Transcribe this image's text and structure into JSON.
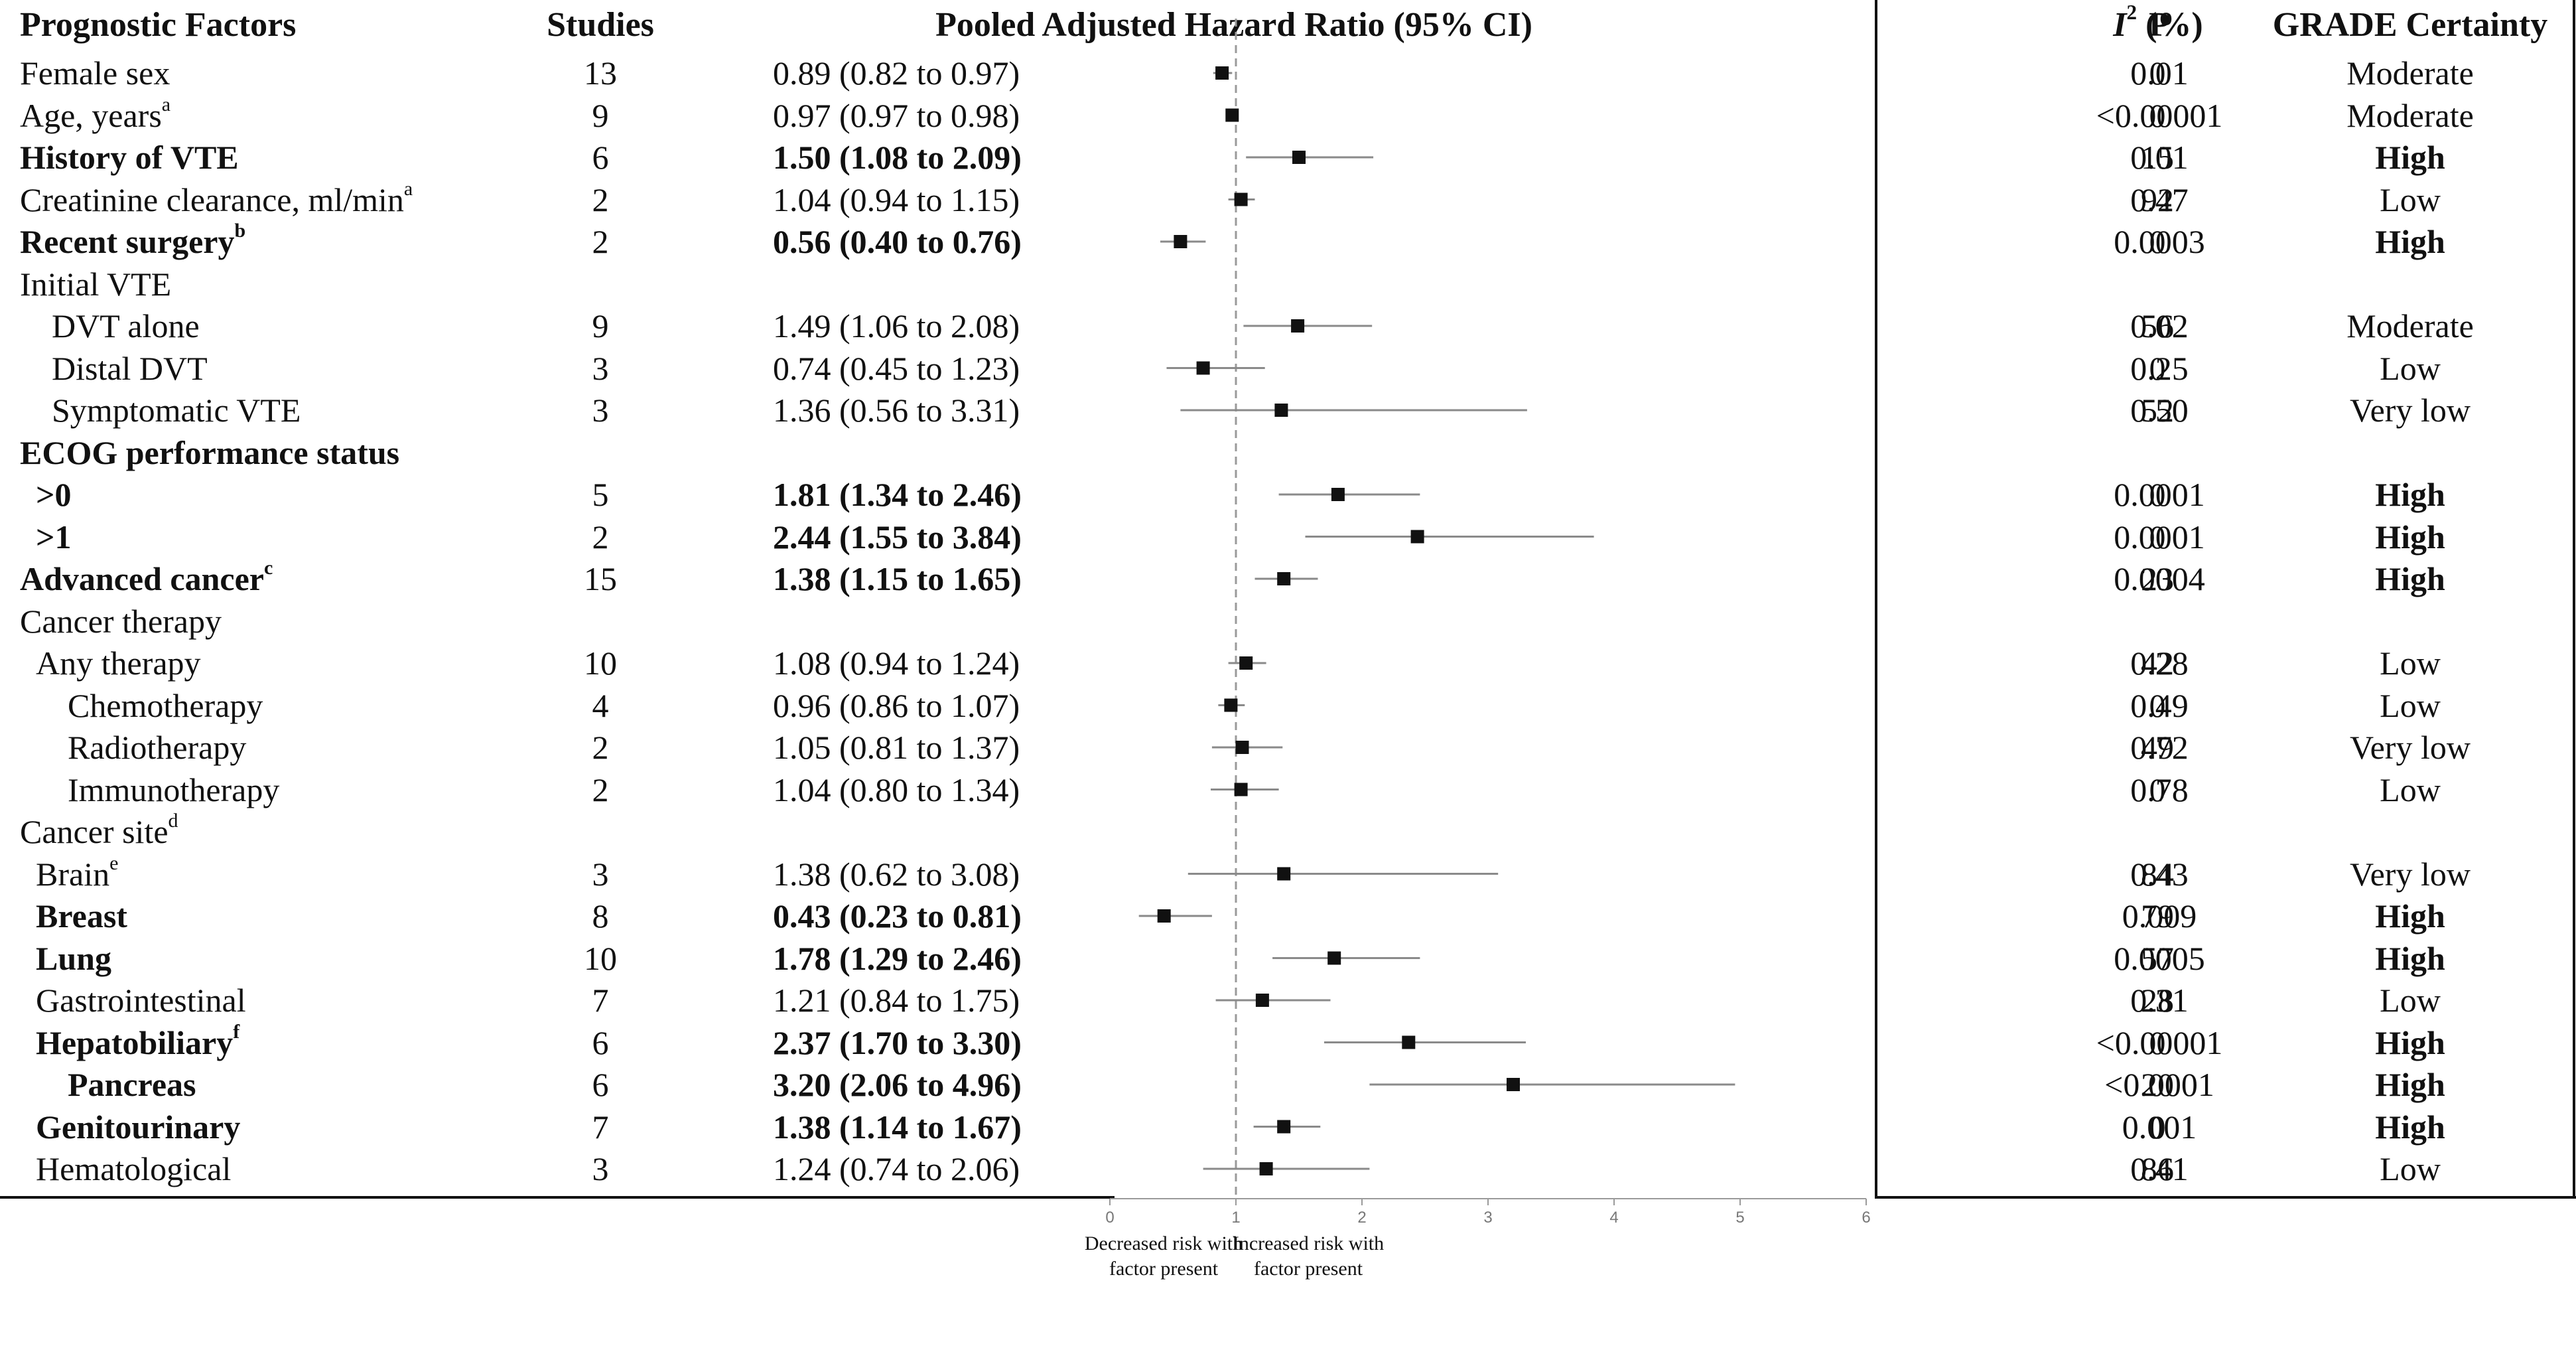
{
  "headers": {
    "factor": "Prognostic Factors",
    "studies": "Studies",
    "hr": "Pooled Adjusted Hazard Ratio (95% CI)",
    "p": "P",
    "i2": "I",
    "i2_sup": "2",
    "i2_unit": " (%)",
    "grade": "GRADE Certainty"
  },
  "rows": [
    {
      "label": "Female sex",
      "indent": 0,
      "bold": false,
      "studies": "13",
      "hr_text": "0.89 (0.82 to 0.97)",
      "hr": 0.89,
      "lo": 0.82,
      "hi": 0.97,
      "p": "0.01",
      "i2": "0",
      "grade": "Moderate",
      "grade_bold": false
    },
    {
      "label": "Age, years",
      "sup": "a",
      "indent": 0,
      "bold": false,
      "studies": "9",
      "hr_text": "0.97 (0.97 to 0.98)",
      "hr": 0.97,
      "lo": 0.97,
      "hi": 0.98,
      "p": "<0.00001",
      "i2": "0",
      "grade": "Moderate",
      "grade_bold": false
    },
    {
      "label": "History of VTE",
      "indent": 0,
      "bold": true,
      "studies": "6",
      "hr_text": "1.50 (1.08 to 2.09)",
      "hr": 1.5,
      "lo": 1.08,
      "hi": 2.09,
      "p": "0.01",
      "i2": "15",
      "grade": "High",
      "grade_bold": true
    },
    {
      "label": "Creatinine clearance, ml/min",
      "sup": "a",
      "indent": 0,
      "bold": false,
      "studies": "2",
      "hr_text": "1.04 (0.94 to 1.15)",
      "hr": 1.04,
      "lo": 0.94,
      "hi": 1.15,
      "p": "0.47",
      "i2": "92",
      "grade": "Low",
      "grade_bold": false
    },
    {
      "label": "Recent surgery",
      "sup": "b",
      "indent": 0,
      "bold": true,
      "studies": "2",
      "hr_text": "0.56 (0.40 to 0.76)",
      "hr": 0.56,
      "lo": 0.4,
      "hi": 0.76,
      "p": "0.0003",
      "i2": "0",
      "grade": "High",
      "grade_bold": true
    },
    {
      "label": "Initial VTE",
      "indent": 0,
      "bold": false
    },
    {
      "label": "DVT alone",
      "indent": 1,
      "bold": false,
      "studies": "9",
      "hr_text": "1.49 (1.06 to 2.08)",
      "hr": 1.49,
      "lo": 1.06,
      "hi": 2.08,
      "p": "0.02",
      "i2": "56",
      "grade": "Moderate",
      "grade_bold": false
    },
    {
      "label": "Distal DVT",
      "indent": 1,
      "bold": false,
      "studies": "3",
      "hr_text": "0.74 (0.45 to 1.23)",
      "hr": 0.74,
      "lo": 0.45,
      "hi": 1.23,
      "p": "0.25",
      "i2": "0",
      "grade": "Low",
      "grade_bold": false
    },
    {
      "label": "Symptomatic VTE",
      "indent": 1,
      "bold": false,
      "studies": "3",
      "hr_text": "1.36 (0.56 to 3.31)",
      "hr": 1.36,
      "lo": 0.56,
      "hi": 3.31,
      "p": "0.50",
      "i2": "52",
      "grade": "Very low",
      "grade_bold": false
    },
    {
      "label": "ECOG performance status",
      "indent": 0,
      "bold": true
    },
    {
      "label": ">0",
      "indent": 0.5,
      "bold": true,
      "studies": "5",
      "hr_text": "1.81 (1.34 to 2.46)",
      "hr_bold": true,
      "hr": 1.81,
      "lo": 1.34,
      "hi": 2.46,
      "p": "0.0001",
      "i2": "0",
      "grade": "High",
      "grade_bold": true
    },
    {
      "label": ">1",
      "indent": 0.5,
      "bold": true,
      "studies": "2",
      "hr_text": "2.44 (1.55 to 3.84)",
      "hr_bold": true,
      "hr": 2.44,
      "lo": 1.55,
      "hi": 3.84,
      "p": "0.0001",
      "i2": "0",
      "grade": "High",
      "grade_bold": true
    },
    {
      "label": "Advanced cancer",
      "sup": "c",
      "indent": 0,
      "bold": true,
      "studies": "15",
      "hr_text": "1.38 (1.15 to 1.65)",
      "hr": 1.38,
      "lo": 1.15,
      "hi": 1.65,
      "p": "0.0004",
      "i2": "23",
      "grade": "High",
      "grade_bold": true
    },
    {
      "label": "Cancer therapy",
      "indent": 0,
      "bold": false
    },
    {
      "label": "Any therapy",
      "indent": 0.5,
      "bold": false,
      "studies": "10",
      "hr_text": "1.08 (0.94 to 1.24)",
      "hr": 1.08,
      "lo": 0.94,
      "hi": 1.24,
      "p": "0.28",
      "i2": "42",
      "grade": "Low",
      "grade_bold": false
    },
    {
      "label": "Chemotherapy",
      "indent": 1.5,
      "bold": false,
      "studies": "4",
      "hr_text": "0.96 (0.86 to 1.07)",
      "hr": 0.96,
      "lo": 0.86,
      "hi": 1.07,
      "p": "0.49",
      "i2": "0",
      "grade": "Low",
      "grade_bold": false
    },
    {
      "label": "Radiotherapy",
      "indent": 1.5,
      "bold": false,
      "studies": "2",
      "hr_text": "1.05 (0.81 to 1.37)",
      "hr": 1.05,
      "lo": 0.81,
      "hi": 1.37,
      "p": "0.72",
      "i2": "49",
      "grade": "Very low",
      "grade_bold": false
    },
    {
      "label": "Immunotherapy",
      "indent": 1.5,
      "bold": false,
      "studies": "2",
      "hr_text": "1.04 (0.80 to 1.34)",
      "hr": 1.04,
      "lo": 0.8,
      "hi": 1.34,
      "p": "0.78",
      "i2": "0",
      "grade": "Low",
      "grade_bold": false
    },
    {
      "label": "Cancer site",
      "sup": "d",
      "indent": 0,
      "bold": false
    },
    {
      "label": "Brain",
      "sup": "e",
      "indent": 0.5,
      "bold": false,
      "studies": "3",
      "hr_text": "1.38 (0.62 to 3.08)",
      "hr": 1.38,
      "lo": 0.62,
      "hi": 3.08,
      "p": "0.43",
      "i2": "84",
      "grade": "Very low",
      "grade_bold": false
    },
    {
      "label": "Breast",
      "indent": 0.5,
      "bold": true,
      "studies": "8",
      "hr_text": "0.43 (0.23 to 0.81)",
      "hr": 0.43,
      "lo": 0.23,
      "hi": 0.81,
      "p": "0.009",
      "i2": "79",
      "grade": "High",
      "grade_bold": true
    },
    {
      "label": "Lung",
      "indent": 0.5,
      "bold": true,
      "studies": "10",
      "hr_text": "1.78 (1.29 to 2.46)",
      "hr": 1.78,
      "lo": 1.29,
      "hi": 2.46,
      "p": "0.0005",
      "i2": "57",
      "grade": "High",
      "grade_bold": true
    },
    {
      "label": "Gastrointestinal",
      "indent": 0.5,
      "bold": false,
      "studies": "7",
      "hr_text": "1.21 (0.84 to 1.75)",
      "hr": 1.21,
      "lo": 0.84,
      "hi": 1.75,
      "p": "0.31",
      "i2": "28",
      "grade": "Low",
      "grade_bold": false
    },
    {
      "label": "Hepatobiliary",
      "sup": "f",
      "indent": 0.5,
      "bold": true,
      "studies": "6",
      "hr_text": "2.37 (1.70 to 3.30)",
      "hr": 2.37,
      "lo": 1.7,
      "hi": 3.3,
      "p": "<0.00001",
      "i2": "0",
      "grade": "High",
      "grade_bold": true
    },
    {
      "label": "Pancreas",
      "indent": 1.5,
      "bold": true,
      "studies": "6",
      "hr_text": "3.20 (2.06 to 4.96)",
      "hr": 3.2,
      "lo": 2.06,
      "hi": 4.96,
      "p": "<0.0001",
      "i2": "20",
      "grade": "High",
      "grade_bold": true
    },
    {
      "label": "Genitourinary",
      "indent": 0.5,
      "bold": true,
      "studies": "7",
      "hr_text": "1.38 (1.14 to 1.67)",
      "hr": 1.38,
      "lo": 1.14,
      "hi": 1.67,
      "p": "0.001",
      "i2": "0",
      "grade": "High",
      "grade_bold": true
    },
    {
      "label": "Hematological",
      "indent": 0.5,
      "bold": false,
      "studies": "3",
      "hr_text": "1.24 (0.74 to 2.06)",
      "hr": 1.24,
      "lo": 0.74,
      "hi": 2.06,
      "p": "0.41",
      "i2": "86",
      "grade": "Low",
      "grade_bold": false
    }
  ],
  "chart_data": {
    "type": "forest",
    "xlim": [
      0,
      6
    ],
    "xticks": [
      "0",
      "1",
      "2",
      "3",
      "4",
      "5",
      "6"
    ],
    "reference_line": 1,
    "captions": {
      "left": "Decreased risk with factor present",
      "right": "Increased risk with factor present"
    }
  },
  "colors": {
    "text": "#111111",
    "ci_line": "#8a8a8a",
    "marker": "#111111",
    "ref_line": "#9a9a9a",
    "axis": "#9a9a9a"
  }
}
